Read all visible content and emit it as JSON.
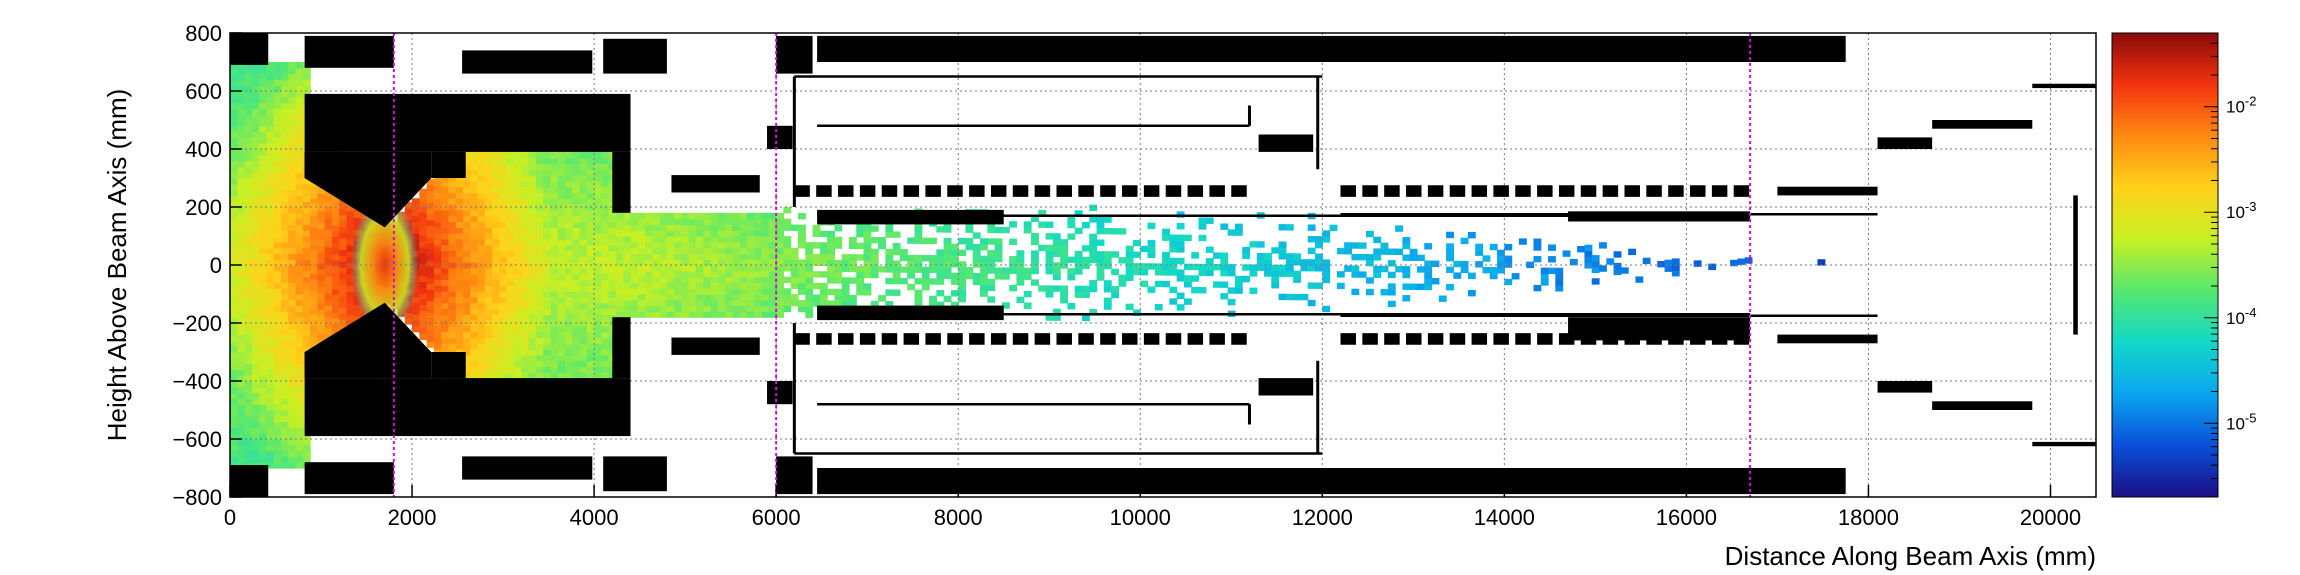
{
  "chart_data": {
    "type": "heatmap",
    "title": "",
    "xlabel": "Distance Along Beam Axis (mm)",
    "ylabel": "Height Above Beam Axis (mm)",
    "xlim": [
      0,
      20500
    ],
    "ylim": [
      -800,
      800
    ],
    "x_ticks": [
      0,
      2000,
      4000,
      6000,
      8000,
      10000,
      12000,
      14000,
      16000,
      18000,
      20000
    ],
    "x_tick_labels": [
      "0",
      "2000",
      "4000",
      "6000",
      "8000",
      "10000",
      "12000",
      "14000",
      "16000",
      "18000",
      "20000"
    ],
    "y_ticks": [
      -800,
      -600,
      -400,
      -200,
      0,
      200,
      400,
      600,
      800
    ],
    "y_tick_labels": [
      "−800",
      "−600",
      "−400",
      "−200",
      "0",
      "200",
      "400",
      "600",
      "800"
    ],
    "grid": true,
    "color_scale": "log",
    "colorbar_range": [
      2e-06,
      0.05
    ],
    "colorbar_ticks": [
      1e-05,
      0.0001,
      0.001,
      0.01
    ],
    "colorbar_tick_labels": [
      {
        "base": "10",
        "exp": "-5"
      },
      {
        "base": "10",
        "exp": "-4"
      },
      {
        "base": "10",
        "exp": "-3"
      },
      {
        "base": "10",
        "exp": "-2"
      }
    ],
    "colormap": [
      "#1a0f86",
      "#0a4fd8",
      "#0aa6f0",
      "#12d8c8",
      "#55e870",
      "#c8f024",
      "#ffd21a",
      "#ff8a12",
      "#f2340e",
      "#8a0a0a"
    ],
    "dashed_markers_x": [
      1800,
      6000,
      16700
    ],
    "marker_color": "#d010d0",
    "absorber_color": "#000000",
    "hot_spot": {
      "x": 1700,
      "y": 0
    },
    "detector_blocks": [
      {
        "x0": 0,
        "x1": 420,
        "y0": 690,
        "y1": 800
      },
      {
        "x0": 0,
        "x1": 420,
        "y0": -800,
        "y1": -690
      },
      {
        "x0": 820,
        "x1": 4400,
        "y0": 390,
        "y1": 590
      },
      {
        "x0": 820,
        "x1": 4400,
        "y0": -590,
        "y1": -390
      },
      {
        "x0": 820,
        "x1": 1230,
        "y0": 300,
        "y1": 390
      },
      {
        "x0": 820,
        "x1": 1230,
        "y0": -390,
        "y1": -300
      },
      {
        "x0": 2210,
        "x1": 2590,
        "y0": 300,
        "y1": 390
      },
      {
        "x0": 2210,
        "x1": 2590,
        "y0": -390,
        "y1": -300
      },
      {
        "x0": 4200,
        "x1": 4400,
        "y0": 180,
        "y1": 390
      },
      {
        "x0": 4200,
        "x1": 4400,
        "y0": -390,
        "y1": -180
      },
      {
        "x0": 820,
        "x1": 1800,
        "y0": 680,
        "y1": 790
      },
      {
        "x0": 820,
        "x1": 1800,
        "y0": -790,
        "y1": -680
      },
      {
        "x0": 2550,
        "x1": 3980,
        "y0": 660,
        "y1": 740
      },
      {
        "x0": 2550,
        "x1": 3980,
        "y0": -740,
        "y1": -660
      },
      {
        "x0": 4100,
        "x1": 4800,
        "y0": 660,
        "y1": 780
      },
      {
        "x0": 4100,
        "x1": 4800,
        "y0": -780,
        "y1": -660
      },
      {
        "x0": 6000,
        "x1": 6400,
        "y0": 660,
        "y1": 790
      },
      {
        "x0": 6000,
        "x1": 6400,
        "y0": -790,
        "y1": -660
      },
      {
        "x0": 6450,
        "x1": 17750,
        "y0": 700,
        "y1": 790
      },
      {
        "x0": 6450,
        "x1": 17750,
        "y0": -790,
        "y1": -700
      },
      {
        "x0": 5900,
        "x1": 6180,
        "y0": 400,
        "y1": 480
      },
      {
        "x0": 5900,
        "x1": 6180,
        "y0": -480,
        "y1": -400
      },
      {
        "x0": 4850,
        "x1": 5820,
        "y0": 250,
        "y1": 310
      },
      {
        "x0": 4850,
        "x1": 5820,
        "y0": -310,
        "y1": -250
      },
      {
        "x0": 6450,
        "x1": 8500,
        "y0": 140,
        "y1": 190
      },
      {
        "x0": 6450,
        "x1": 8500,
        "y0": -190,
        "y1": -140
      },
      {
        "x0": 11300,
        "x1": 11900,
        "y0": 390,
        "y1": 450
      },
      {
        "x0": 11300,
        "x1": 11900,
        "y0": -450,
        "y1": -390
      },
      {
        "x0": 14700,
        "x1": 16700,
        "y0": 150,
        "y1": 185
      },
      {
        "x0": 14700,
        "x1": 16700,
        "y0": -260,
        "y1": -180
      },
      {
        "x0": 18100,
        "x1": 18700,
        "y0": 400,
        "y1": 440
      },
      {
        "x0": 18100,
        "x1": 18700,
        "y0": -440,
        "y1": -400
      },
      {
        "x0": 18700,
        "x1": 19800,
        "y0": 470,
        "y1": 500
      },
      {
        "x0": 18700,
        "x1": 19800,
        "y0": -500,
        "y1": -470
      },
      {
        "x0": 19800,
        "x1": 20500,
        "y0": 610,
        "y1": 625
      },
      {
        "x0": 19800,
        "x1": 20500,
        "y0": -625,
        "y1": -610
      },
      {
        "x0": 17000,
        "x1": 18100,
        "y0": 240,
        "y1": 270
      },
      {
        "x0": 17000,
        "x1": 18100,
        "y0": -270,
        "y1": -240
      },
      {
        "x0": 20250,
        "x1": 20300,
        "y0": -240,
        "y1": 240
      }
    ],
    "dashed_rows": [
      {
        "x0": 6200,
        "x1": 11200,
        "y": 255,
        "h": 40
      },
      {
        "x0": 6200,
        "x1": 11200,
        "y": -255,
        "h": 40
      },
      {
        "x0": 12200,
        "x1": 16700,
        "y": 255,
        "h": 40
      },
      {
        "x0": 12200,
        "x1": 16700,
        "y": -255,
        "h": 40
      }
    ]
  }
}
